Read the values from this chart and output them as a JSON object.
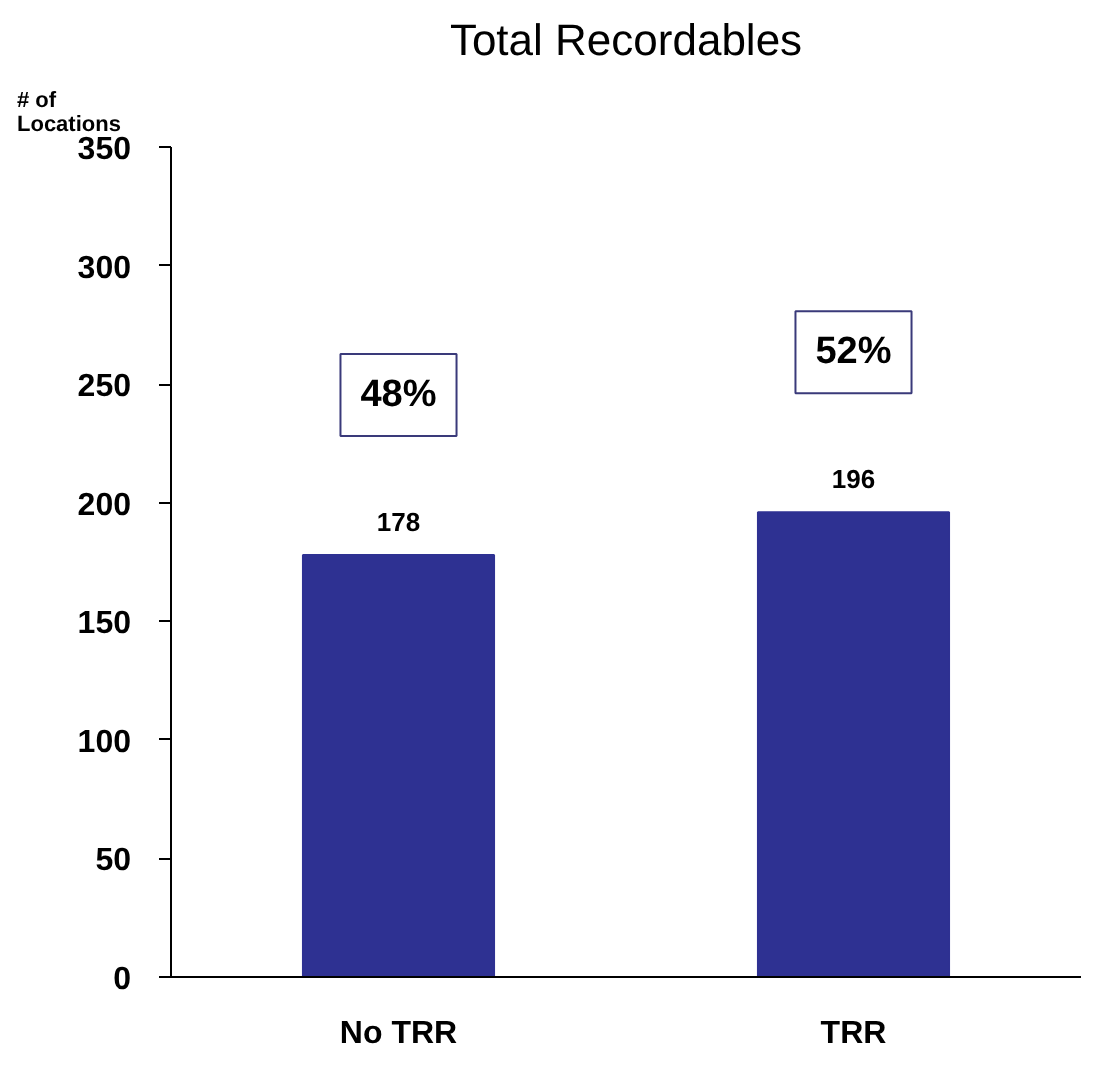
{
  "chart_data": {
    "type": "bar",
    "title": "Total Recordables",
    "ylabel": "# of\nLocations",
    "categories": [
      "No TRR",
      "TRR"
    ],
    "values": [
      178,
      196
    ],
    "color": "#2e3192",
    "data_labels": true,
    "ylim": [
      0,
      350
    ],
    "yticks": [
      0,
      50,
      100,
      150,
      200,
      250,
      300,
      350
    ],
    "grid": false,
    "annotations": [
      "48%",
      "52%"
    ]
  }
}
